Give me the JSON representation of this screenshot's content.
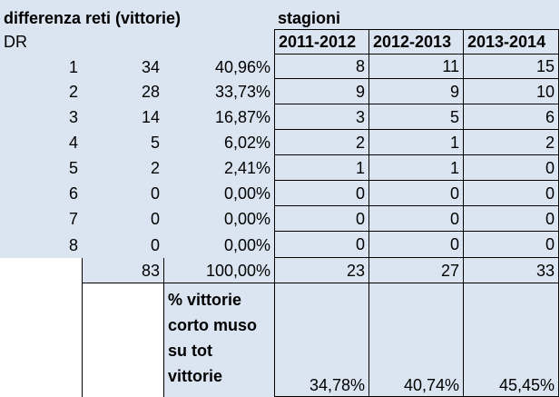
{
  "header": {
    "title": "differenza reti (vittorie)",
    "seasons_label": "stagioni",
    "dr_label": "DR",
    "seasons": [
      "2011-2012",
      "2012-2013",
      "2013-2014"
    ]
  },
  "rows": [
    {
      "dr": "1",
      "count": "34",
      "pct": "40,96%",
      "s1": "8",
      "s2": "11",
      "s3": "15"
    },
    {
      "dr": "2",
      "count": "28",
      "pct": "33,73%",
      "s1": "9",
      "s2": "9",
      "s3": "10"
    },
    {
      "dr": "3",
      "count": "14",
      "pct": "16,87%",
      "s1": "3",
      "s2": "5",
      "s3": "6"
    },
    {
      "dr": "4",
      "count": "5",
      "pct": "6,02%",
      "s1": "2",
      "s2": "1",
      "s3": "2"
    },
    {
      "dr": "5",
      "count": "2",
      "pct": "2,41%",
      "s1": "1",
      "s2": "1",
      "s3": "0"
    },
    {
      "dr": "6",
      "count": "0",
      "pct": "0,00%",
      "s1": "0",
      "s2": "0",
      "s3": "0"
    },
    {
      "dr": "7",
      "count": "0",
      "pct": "0,00%",
      "s1": "0",
      "s2": "0",
      "s3": "0"
    },
    {
      "dr": "8",
      "count": "0",
      "pct": "0,00%",
      "s1": "0",
      "s2": "0",
      "s3": "0"
    }
  ],
  "totals": {
    "count": "83",
    "pct": "100,00%",
    "s1": "23",
    "s2": "27",
    "s3": "33"
  },
  "summary": {
    "label_lines": [
      "% vittorie",
      "corto muso",
      "su tot",
      "vittorie"
    ],
    "s1": "34,78%",
    "s2": "40,74%",
    "s3": "45,45%"
  }
}
